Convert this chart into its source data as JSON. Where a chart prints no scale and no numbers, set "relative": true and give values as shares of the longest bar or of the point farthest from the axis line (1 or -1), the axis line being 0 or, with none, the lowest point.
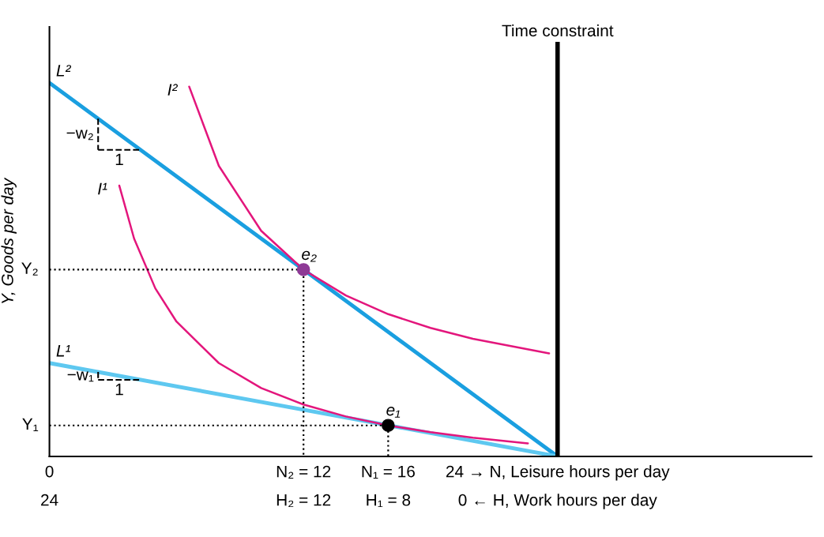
{
  "chart_data": {
    "type": "line",
    "relative": true,
    "ylabel": "Y, Goods per day",
    "xlim": [
      0,
      36
    ],
    "xticks": [
      {
        "value": 0,
        "label": "0"
      },
      {
        "value": 12,
        "label": "N₂ = 12"
      },
      {
        "value": 16,
        "label": "N₁ = 16"
      },
      {
        "value": 24,
        "label": "24 → N, Leisure hours per day"
      }
    ],
    "series": [
      {
        "name": "L²",
        "color": "#1a9fe0",
        "x": [
          0,
          24
        ],
        "values": [
          1.0,
          0
        ]
      },
      {
        "name": "L¹",
        "color": "#5ec8f0",
        "x": [
          0,
          24
        ],
        "values": [
          0.25,
          0
        ]
      },
      {
        "name": "I²",
        "color": "#e3167c",
        "x": [
          6.6,
          8,
          10,
          12,
          14,
          16,
          18,
          20,
          23.6
        ],
        "values": [
          0.99,
          0.778,
          0.604,
          0.5,
          0.431,
          0.381,
          0.344,
          0.315,
          0.276
        ]
      },
      {
        "name": "I¹",
        "color": "#e3167c",
        "x": [
          3.3,
          4,
          5,
          6,
          8,
          10,
          12,
          14,
          16,
          18,
          20,
          22.6
        ],
        "values": [
          0.725,
          0.583,
          0.45,
          0.361,
          0.25,
          0.183,
          0.139,
          0.107,
          0.083,
          0.065,
          0.05,
          0.035
        ]
      },
      {
        "color": "#000000",
        "line_style": "dotted",
        "x": [
          0,
          12,
          12
        ],
        "values": [
          0.5,
          0.5,
          0
        ]
      },
      {
        "color": "#000000",
        "line_style": "dotted",
        "x": [
          0,
          16,
          16
        ],
        "values": [
          0.083,
          0.083,
          0
        ]
      },
      {
        "name": "e₂",
        "type": "scatter",
        "color": "#8e3a96",
        "x": [
          12
        ],
        "values": [
          0.5
        ]
      },
      {
        "name": "e₁",
        "type": "scatter",
        "color": "#000000",
        "x": [
          16
        ],
        "values": [
          0.083
        ]
      }
    ],
    "ref_lines": [
      {
        "axis": "x",
        "value": 24,
        "label": "Time constraint",
        "color": "#000000"
      }
    ],
    "annotations": [
      "24",
      "H₂ = 12",
      "H₁ = 8",
      "0 ← H, Work hours per day",
      {
        "text": "Y₂",
        "x": 0,
        "y": 0.5
      },
      {
        "text": "Y₁",
        "x": 0,
        "y": 0.083
      },
      "−w₂",
      "1",
      "−w₁",
      "1"
    ],
    "grid": false
  }
}
